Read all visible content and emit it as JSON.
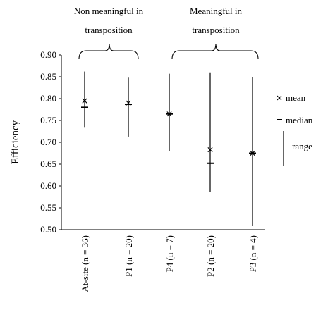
{
  "chart_data": {
    "type": "scatter",
    "ylabel": "Efficiency",
    "xlabel": "",
    "ylim": [
      0.5,
      0.9
    ],
    "yticks": [
      "0.90",
      "0.85",
      "0.80",
      "0.75",
      "0.70",
      "0.65",
      "0.60",
      "0.55",
      "0.50"
    ],
    "categories": [
      "At-site (n = 36)",
      "P1 (n = 20)",
      "P4 (n = 7)",
      "P2 (n = 20)",
      "P3 (n = 4)"
    ],
    "series": [
      {
        "name": "mean",
        "values": [
          0.795,
          0.79,
          0.765,
          0.683,
          0.675
        ]
      },
      {
        "name": "median",
        "values": [
          0.78,
          0.787,
          0.765,
          0.652,
          0.675
        ]
      },
      {
        "name": "range",
        "min": [
          0.735,
          0.713,
          0.68,
          0.587,
          0.508
        ],
        "max": [
          0.862,
          0.848,
          0.857,
          0.86,
          0.85
        ]
      }
    ],
    "groups": [
      {
        "label_line1": "Non meaningful in",
        "label_line2": "transposition",
        "categories": [
          0,
          1
        ]
      },
      {
        "label_line1": "Meaningful in",
        "label_line2": "transposition",
        "categories": [
          2,
          4
        ]
      }
    ],
    "legend": {
      "position": "right",
      "entries": [
        {
          "symbol": "×",
          "label": "mean"
        },
        {
          "symbol": "-",
          "label": "median"
        },
        {
          "symbol": "|",
          "label": "range"
        }
      ]
    },
    "grid": false
  }
}
